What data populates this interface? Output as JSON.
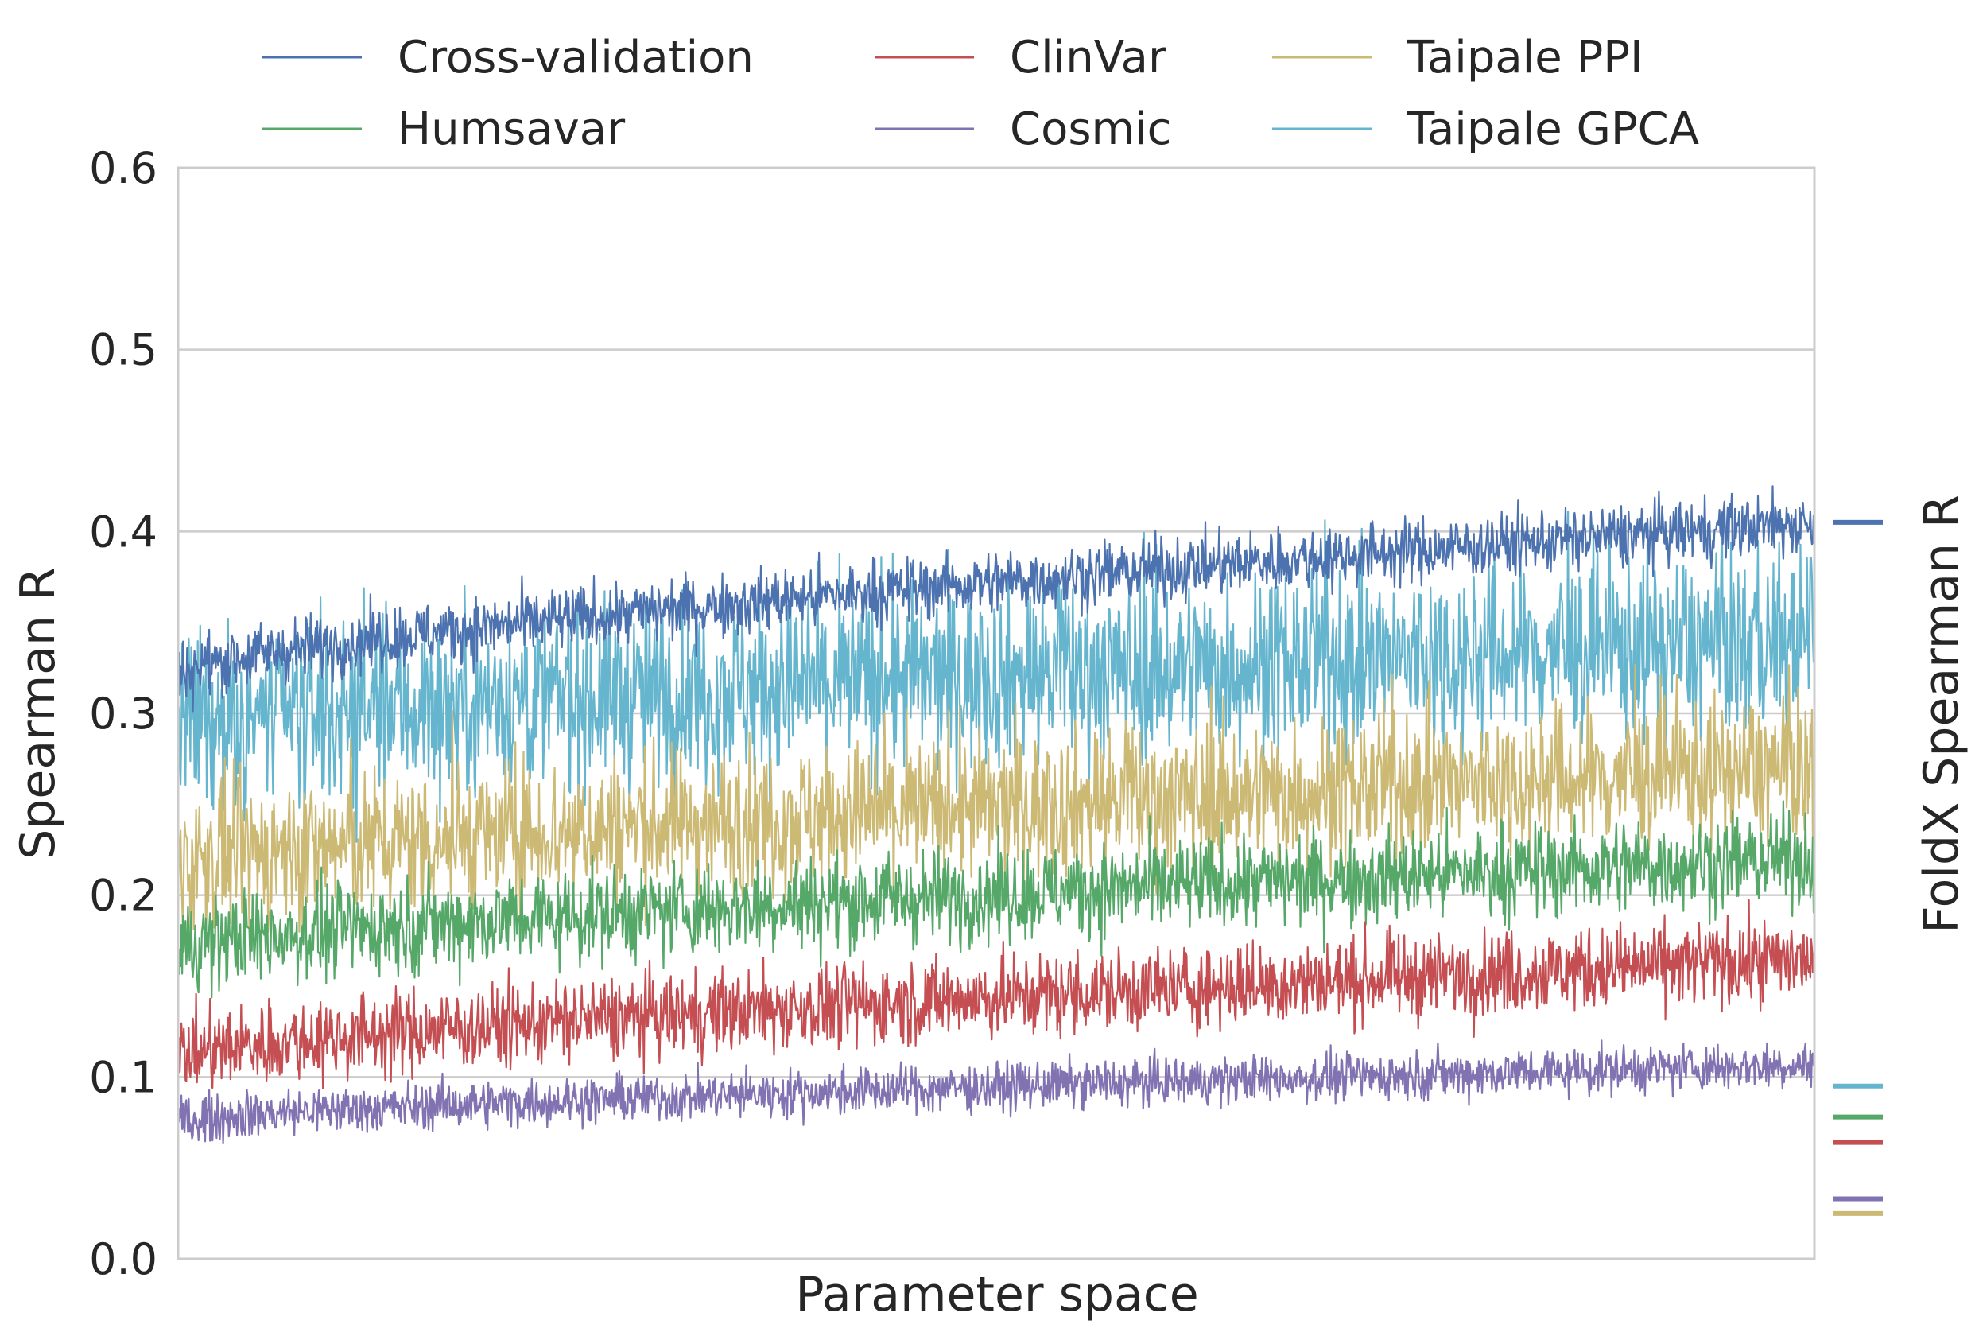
{
  "chart_data": {
    "type": "line",
    "xlabel": "Parameter space",
    "ylabel": "Spearman R",
    "ylabel_right": "FoldX Spearman R",
    "ylim": [
      0.0,
      0.6
    ],
    "yticks": [
      "0.0",
      "0.1",
      "0.2",
      "0.3",
      "0.4",
      "0.5",
      "0.6"
    ],
    "grid": true,
    "legend": {
      "placement": "top",
      "columns": 3
    },
    "points_per_series": 2000,
    "series": [
      {
        "name": "Cross-validation",
        "color": "#4c72b0",
        "start": 0.32,
        "end": 0.405,
        "noise": 0.012,
        "foldx": 0.405
      },
      {
        "name": "Humsavar",
        "color": "#55a868",
        "start": 0.17,
        "end": 0.22,
        "noise": 0.018,
        "foldx": 0.078
      },
      {
        "name": "ClinVar",
        "color": "#c44e52",
        "start": 0.11,
        "end": 0.165,
        "noise": 0.016,
        "foldx": 0.064
      },
      {
        "name": "Cosmic",
        "color": "#8172b2",
        "start": 0.075,
        "end": 0.107,
        "noise": 0.009,
        "foldx": 0.033
      },
      {
        "name": "Taipale PPI",
        "color": "#ccb974",
        "start": 0.215,
        "end": 0.27,
        "noise": 0.028,
        "foldx": 0.025
      },
      {
        "name": "Taipale GPCA",
        "color": "#64b5cd",
        "start": 0.29,
        "end": 0.34,
        "noise": 0.035,
        "foldx": 0.095
      }
    ]
  }
}
